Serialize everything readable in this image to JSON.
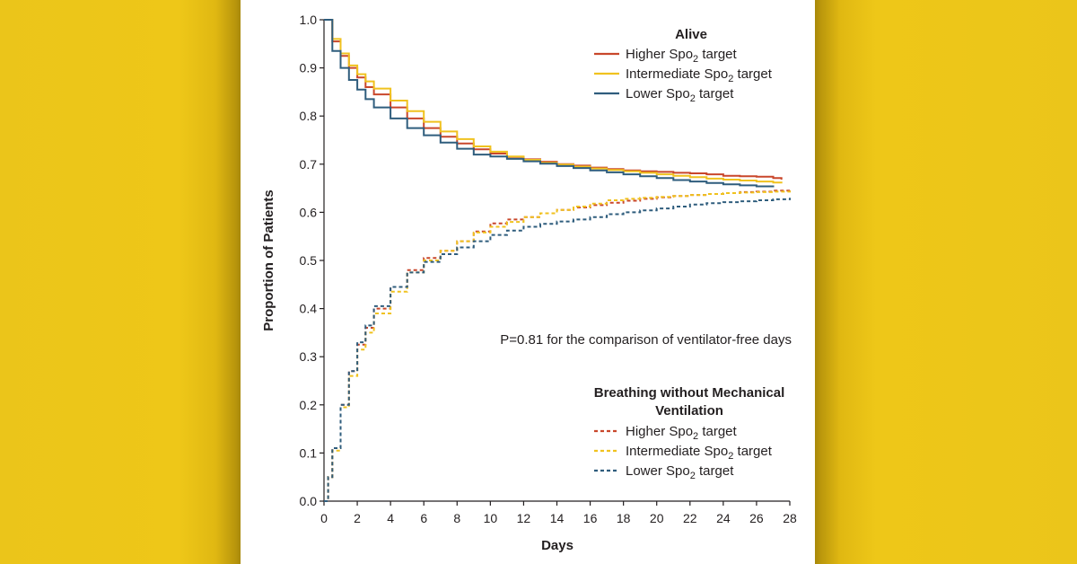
{
  "chart_data": {
    "type": "line",
    "title": "",
    "xlabel": "Days",
    "ylabel": "Proportion of Patients",
    "xlim": [
      0,
      28
    ],
    "ylim": [
      0,
      1
    ],
    "xticks": [
      "0",
      "2",
      "4",
      "6",
      "8",
      "10",
      "12",
      "14",
      "16",
      "18",
      "20",
      "22",
      "24",
      "26",
      "28"
    ],
    "yticks": [
      "0.0",
      "0.1",
      "0.2",
      "0.3",
      "0.4",
      "0.5",
      "0.6",
      "0.7",
      "0.8",
      "0.9",
      "1.0"
    ],
    "annotation": "P=0.81 for the comparison of ventilator-free days",
    "colors": {
      "higher": "#c9472b",
      "intermediate": "#f0c21f",
      "lower": "#2f5d7d"
    },
    "groups": [
      {
        "title": "Alive",
        "style": "solid",
        "series": [
          {
            "name": "Higher Spo2 target",
            "label_pre": "Higher Spo",
            "label_sub": "2",
            "label_post": " target",
            "color_key": "higher",
            "x": [
              0,
              0.5,
              1,
              1.5,
              2,
              2.5,
              3,
              4,
              5,
              6,
              7,
              8,
              9,
              10,
              11,
              12,
              13,
              14,
              15,
              16,
              17,
              18,
              19,
              20,
              21,
              22,
              23,
              24,
              25,
              26,
              27,
              27.5
            ],
            "y": [
              1.0,
              0.955,
              0.925,
              0.9,
              0.88,
              0.86,
              0.845,
              0.818,
              0.795,
              0.775,
              0.757,
              0.743,
              0.731,
              0.722,
              0.715,
              0.71,
              0.705,
              0.7,
              0.697,
              0.693,
              0.69,
              0.687,
              0.685,
              0.684,
              0.682,
              0.681,
              0.679,
              0.676,
              0.675,
              0.674,
              0.671,
              0.668
            ]
          },
          {
            "name": "Intermediate Spo2 target",
            "label_pre": "Intermediate Spo",
            "label_sub": "2",
            "label_post": " target",
            "color_key": "intermediate",
            "x": [
              0,
              0.5,
              1,
              1.5,
              2,
              2.5,
              3,
              4,
              5,
              6,
              7,
              8,
              9,
              10,
              11,
              12,
              13,
              14,
              15,
              16,
              17,
              18,
              19,
              20,
              21,
              22,
              23,
              24,
              25,
              26,
              27,
              27.5
            ],
            "y": [
              1.0,
              0.96,
              0.93,
              0.905,
              0.887,
              0.872,
              0.857,
              0.832,
              0.81,
              0.788,
              0.768,
              0.752,
              0.737,
              0.726,
              0.716,
              0.709,
              0.703,
              0.699,
              0.695,
              0.691,
              0.688,
              0.685,
              0.682,
              0.679,
              0.676,
              0.673,
              0.67,
              0.668,
              0.666,
              0.664,
              0.662,
              0.66
            ]
          },
          {
            "name": "Lower Spo2 target",
            "label_pre": "Lower Spo",
            "label_sub": "2",
            "label_post": " target",
            "color_key": "lower",
            "x": [
              0,
              0.5,
              1,
              1.5,
              2,
              2.5,
              3,
              4,
              5,
              6,
              7,
              8,
              9,
              10,
              11,
              12,
              13,
              14,
              15,
              16,
              17,
              18,
              19,
              20,
              21,
              22,
              23,
              24,
              25,
              26,
              27
            ],
            "y": [
              1.0,
              0.935,
              0.9,
              0.875,
              0.855,
              0.835,
              0.818,
              0.795,
              0.775,
              0.76,
              0.745,
              0.732,
              0.72,
              0.716,
              0.711,
              0.706,
              0.701,
              0.696,
              0.692,
              0.687,
              0.683,
              0.679,
              0.675,
              0.671,
              0.667,
              0.664,
              0.661,
              0.658,
              0.656,
              0.654,
              0.652
            ]
          }
        ]
      },
      {
        "title_line1": "Breathing without Mechanical",
        "title_line2": "Ventilation",
        "style": "dashed",
        "series": [
          {
            "name": "Higher Spo2 target",
            "label_pre": "Higher Spo",
            "label_sub": "2",
            "label_post": " target",
            "color_key": "higher",
            "x": [
              0,
              0.25,
              0.5,
              1,
              1.5,
              2,
              2.5,
              3,
              4,
              5,
              6,
              7,
              8,
              9,
              10,
              11,
              12,
              13,
              14,
              15,
              16,
              17,
              18,
              19,
              20,
              21,
              22,
              23,
              24,
              25,
              26,
              27,
              28
            ],
            "y": [
              0,
              0.05,
              0.11,
              0.2,
              0.27,
              0.325,
              0.36,
              0.4,
              0.445,
              0.48,
              0.505,
              0.52,
              0.54,
              0.56,
              0.577,
              0.585,
              0.59,
              0.598,
              0.605,
              0.61,
              0.615,
              0.62,
              0.624,
              0.628,
              0.631,
              0.634,
              0.636,
              0.638,
              0.64,
              0.642,
              0.643,
              0.645,
              0.647
            ]
          },
          {
            "name": "Intermediate Spo2 target",
            "label_pre": "Intermediate Spo",
            "label_sub": "2",
            "label_post": " target",
            "color_key": "intermediate",
            "x": [
              0,
              0.25,
              0.5,
              1,
              1.5,
              2,
              2.5,
              3,
              4,
              5,
              6,
              7,
              8,
              9,
              10,
              11,
              12,
              13,
              14,
              15,
              16,
              17,
              18,
              19,
              20,
              21,
              22,
              23,
              24,
              25,
              26,
              27,
              28
            ],
            "y": [
              0,
              0.05,
              0.105,
              0.195,
              0.26,
              0.315,
              0.35,
              0.39,
              0.435,
              0.475,
              0.5,
              0.52,
              0.54,
              0.558,
              0.57,
              0.58,
              0.59,
              0.598,
              0.605,
              0.612,
              0.618,
              0.625,
              0.628,
              0.63,
              0.632,
              0.634,
              0.636,
              0.638,
              0.64,
              0.641,
              0.642,
              0.643,
              0.645
            ]
          },
          {
            "name": "Lower Spo2 target",
            "label_pre": "Lower Spo",
            "label_sub": "2",
            "label_post": " target",
            "color_key": "lower",
            "x": [
              0,
              0.25,
              0.5,
              1,
              1.5,
              2,
              2.5,
              3,
              4,
              5,
              6,
              7,
              8,
              9,
              10,
              11,
              12,
              13,
              14,
              15,
              16,
              17,
              18,
              19,
              20,
              21,
              22,
              23,
              24,
              25,
              26,
              27,
              28
            ],
            "y": [
              0,
              0.05,
              0.11,
              0.2,
              0.27,
              0.33,
              0.365,
              0.405,
              0.445,
              0.475,
              0.497,
              0.513,
              0.527,
              0.54,
              0.553,
              0.562,
              0.57,
              0.576,
              0.581,
              0.585,
              0.59,
              0.596,
              0.6,
              0.604,
              0.608,
              0.612,
              0.616,
              0.619,
              0.621,
              0.623,
              0.625,
              0.627,
              0.63
            ]
          }
        ]
      }
    ]
  }
}
